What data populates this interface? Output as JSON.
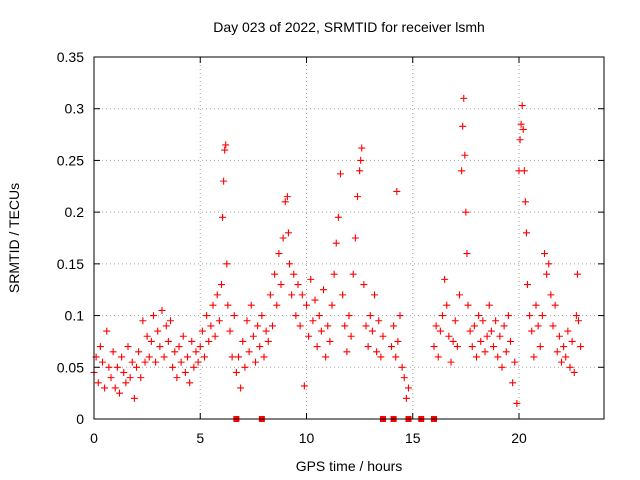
{
  "chart_data": {
    "type": "scatter",
    "title": "Day 023 of 2022, SRMTID for receiver lsmh",
    "xlabel": "GPS time / hours",
    "ylabel": "SRMTID / TECUs",
    "xlim": [
      0,
      24
    ],
    "ylim": [
      0,
      0.35
    ],
    "grid": true,
    "marker": "+",
    "color": "#ff0000",
    "x_ticks": [
      {
        "value": 0,
        "label": "0"
      },
      {
        "value": 5,
        "label": "5"
      },
      {
        "value": 10,
        "label": "10"
      },
      {
        "value": 15,
        "label": "15"
      },
      {
        "value": 20,
        "label": "20"
      }
    ],
    "y_ticks": [
      {
        "value": 0,
        "label": "0"
      },
      {
        "value": 0.05,
        "label": "0.05"
      },
      {
        "value": 0.1,
        "label": "0.1"
      },
      {
        "value": 0.15,
        "label": "0.15"
      },
      {
        "value": 0.2,
        "label": "0.2"
      },
      {
        "value": 0.25,
        "label": "0.25"
      },
      {
        "value": 0.3,
        "label": "0.3"
      },
      {
        "value": 0.35,
        "label": "0.35"
      }
    ],
    "series": [
      {
        "name": "SRMTID",
        "points": [
          [
            0.0,
            0.045
          ],
          [
            0.1,
            0.06
          ],
          [
            0.2,
            0.035
          ],
          [
            0.3,
            0.07
          ],
          [
            0.4,
            0.055
          ],
          [
            0.5,
            0.03
          ],
          [
            0.6,
            0.085
          ],
          [
            0.7,
            0.05
          ],
          [
            0.8,
            0.04
          ],
          [
            0.9,
            0.065
          ],
          [
            1.0,
            0.03
          ],
          [
            1.1,
            0.05
          ],
          [
            1.2,
            0.025
          ],
          [
            1.3,
            0.06
          ],
          [
            1.4,
            0.045
          ],
          [
            1.5,
            0.035
          ],
          [
            1.6,
            0.07
          ],
          [
            1.7,
            0.04
          ],
          [
            1.8,
            0.055
          ],
          [
            1.9,
            0.02
          ],
          [
            2.0,
            0.05
          ],
          [
            2.1,
            0.065
          ],
          [
            2.2,
            0.04
          ],
          [
            2.3,
            0.095
          ],
          [
            2.4,
            0.055
          ],
          [
            2.5,
            0.08
          ],
          [
            2.6,
            0.06
          ],
          [
            2.7,
            0.075
          ],
          [
            2.8,
            0.1
          ],
          [
            2.9,
            0.055
          ],
          [
            3.0,
            0.085
          ],
          [
            3.1,
            0.07
          ],
          [
            3.2,
            0.105
          ],
          [
            3.3,
            0.06
          ],
          [
            3.4,
            0.09
          ],
          [
            3.5,
            0.075
          ],
          [
            3.6,
            0.095
          ],
          [
            3.7,
            0.05
          ],
          [
            3.8,
            0.065
          ],
          [
            3.9,
            0.04
          ],
          [
            4.0,
            0.07
          ],
          [
            4.1,
            0.055
          ],
          [
            4.2,
            0.08
          ],
          [
            4.3,
            0.045
          ],
          [
            4.4,
            0.06
          ],
          [
            4.5,
            0.035
          ],
          [
            4.6,
            0.075
          ],
          [
            4.7,
            0.05
          ],
          [
            4.8,
            0.065
          ],
          [
            4.9,
            0.055
          ],
          [
            5.0,
            0.07
          ],
          [
            5.1,
            0.085
          ],
          [
            5.2,
            0.06
          ],
          [
            5.3,
            0.1
          ],
          [
            5.4,
            0.075
          ],
          [
            5.5,
            0.09
          ],
          [
            5.6,
            0.11
          ],
          [
            5.7,
            0.08
          ],
          [
            5.8,
            0.12
          ],
          [
            5.9,
            0.095
          ],
          [
            6.0,
            0.13
          ],
          [
            6.05,
            0.195
          ],
          [
            6.1,
            0.23
          ],
          [
            6.15,
            0.26
          ],
          [
            6.2,
            0.265
          ],
          [
            6.25,
            0.15
          ],
          [
            6.3,
            0.11
          ],
          [
            6.4,
            0.085
          ],
          [
            6.5,
            0.06
          ],
          [
            6.6,
            0.1
          ],
          [
            6.7,
            0.045
          ],
          [
            6.8,
            0.06
          ],
          [
            6.9,
            0.03
          ],
          [
            7.0,
            0.075
          ],
          [
            7.1,
            0.05
          ],
          [
            7.2,
            0.095
          ],
          [
            7.3,
            0.065
          ],
          [
            7.4,
            0.11
          ],
          [
            7.5,
            0.08
          ],
          [
            7.6,
            0.055
          ],
          [
            7.7,
            0.09
          ],
          [
            7.8,
            0.07
          ],
          [
            7.9,
            0.1
          ],
          [
            8.0,
            0.06
          ],
          [
            8.1,
            0.085
          ],
          [
            8.2,
            0.075
          ],
          [
            8.3,
            0.12
          ],
          [
            8.4,
            0.09
          ],
          [
            8.5,
            0.14
          ],
          [
            8.6,
            0.11
          ],
          [
            8.7,
            0.16
          ],
          [
            8.8,
            0.13
          ],
          [
            8.9,
            0.175
          ],
          [
            9.0,
            0.21
          ],
          [
            9.1,
            0.215
          ],
          [
            9.15,
            0.18
          ],
          [
            9.2,
            0.15
          ],
          [
            9.3,
            0.12
          ],
          [
            9.4,
            0.14
          ],
          [
            9.5,
            0.1
          ],
          [
            9.6,
            0.13
          ],
          [
            9.7,
            0.09
          ],
          [
            9.8,
            0.12
          ],
          [
            9.9,
            0.032
          ],
          [
            10.0,
            0.11
          ],
          [
            10.1,
            0.08
          ],
          [
            10.2,
            0.135
          ],
          [
            10.3,
            0.095
          ],
          [
            10.4,
            0.115
          ],
          [
            10.5,
            0.07
          ],
          [
            10.6,
            0.1
          ],
          [
            10.7,
            0.085
          ],
          [
            10.8,
            0.125
          ],
          [
            10.9,
            0.06
          ],
          [
            11.0,
            0.09
          ],
          [
            11.1,
            0.075
          ],
          [
            11.2,
            0.11
          ],
          [
            11.3,
            0.14
          ],
          [
            11.4,
            0.17
          ],
          [
            11.5,
            0.195
          ],
          [
            11.6,
            0.237
          ],
          [
            11.7,
            0.12
          ],
          [
            11.8,
            0.09
          ],
          [
            11.9,
            0.065
          ],
          [
            12.0,
            0.1
          ],
          [
            12.1,
            0.08
          ],
          [
            12.2,
            0.14
          ],
          [
            12.3,
            0.175
          ],
          [
            12.4,
            0.215
          ],
          [
            12.5,
            0.24
          ],
          [
            12.55,
            0.25
          ],
          [
            12.6,
            0.262
          ],
          [
            12.7,
            0.13
          ],
          [
            12.8,
            0.09
          ],
          [
            12.9,
            0.07
          ],
          [
            13.0,
            0.1
          ],
          [
            13.1,
            0.085
          ],
          [
            13.2,
            0.12
          ],
          [
            13.3,
            0.065
          ],
          [
            13.4,
            0.095
          ],
          [
            13.5,
            0.06
          ],
          [
            13.6,
            0.08
          ],
          [
            14.0,
            0.07
          ],
          [
            14.1,
            0.09
          ],
          [
            14.2,
            0.06
          ],
          [
            14.25,
            0.22
          ],
          [
            14.3,
            0.075
          ],
          [
            14.4,
            0.1
          ],
          [
            14.5,
            0.05
          ],
          [
            14.6,
            0.04
          ],
          [
            14.7,
            0.02
          ],
          [
            14.8,
            0.03
          ],
          [
            16.0,
            0.07
          ],
          [
            16.1,
            0.09
          ],
          [
            16.2,
            0.06
          ],
          [
            16.3,
            0.085
          ],
          [
            16.4,
            0.1
          ],
          [
            16.5,
            0.135
          ],
          [
            16.6,
            0.11
          ],
          [
            16.7,
            0.08
          ],
          [
            16.8,
            0.055
          ],
          [
            16.9,
            0.075
          ],
          [
            17.0,
            0.095
          ],
          [
            17.1,
            0.07
          ],
          [
            17.2,
            0.12
          ],
          [
            17.3,
            0.24
          ],
          [
            17.35,
            0.283
          ],
          [
            17.4,
            0.31
          ],
          [
            17.45,
            0.255
          ],
          [
            17.5,
            0.2
          ],
          [
            17.55,
            0.16
          ],
          [
            17.6,
            0.11
          ],
          [
            17.7,
            0.085
          ],
          [
            17.8,
            0.07
          ],
          [
            17.9,
            0.09
          ],
          [
            18.0,
            0.06
          ],
          [
            18.1,
            0.1
          ],
          [
            18.2,
            0.075
          ],
          [
            18.3,
            0.095
          ],
          [
            18.4,
            0.065
          ],
          [
            18.5,
            0.08
          ],
          [
            18.6,
            0.11
          ],
          [
            18.7,
            0.085
          ],
          [
            18.8,
            0.07
          ],
          [
            18.9,
            0.095
          ],
          [
            19.0,
            0.06
          ],
          [
            19.1,
            0.08
          ],
          [
            19.2,
            0.05
          ],
          [
            19.3,
            0.09
          ],
          [
            19.4,
            0.065
          ],
          [
            19.5,
            0.1
          ],
          [
            19.6,
            0.075
          ],
          [
            19.7,
            0.035
          ],
          [
            19.8,
            0.055
          ],
          [
            19.9,
            0.015
          ],
          [
            20.0,
            0.24
          ],
          [
            20.05,
            0.27
          ],
          [
            20.1,
            0.285
          ],
          [
            20.15,
            0.303
          ],
          [
            20.2,
            0.28
          ],
          [
            20.25,
            0.24
          ],
          [
            20.3,
            0.21
          ],
          [
            20.35,
            0.18
          ],
          [
            20.4,
            0.13
          ],
          [
            20.5,
            0.1
          ],
          [
            20.6,
            0.085
          ],
          [
            20.7,
            0.06
          ],
          [
            20.8,
            0.11
          ],
          [
            20.9,
            0.09
          ],
          [
            21.0,
            0.07
          ],
          [
            21.1,
            0.1
          ],
          [
            21.2,
            0.16
          ],
          [
            21.3,
            0.14
          ],
          [
            21.4,
            0.15
          ],
          [
            21.5,
            0.12
          ],
          [
            21.6,
            0.09
          ],
          [
            21.7,
            0.11
          ],
          [
            21.8,
            0.065
          ],
          [
            21.9,
            0.08
          ],
          [
            22.0,
            0.055
          ],
          [
            22.1,
            0.07
          ],
          [
            22.2,
            0.06
          ],
          [
            22.3,
            0.085
          ],
          [
            22.4,
            0.05
          ],
          [
            22.5,
            0.075
          ],
          [
            22.6,
            0.045
          ],
          [
            22.7,
            0.1
          ],
          [
            22.75,
            0.14
          ],
          [
            22.8,
            0.095
          ],
          [
            22.9,
            0.07
          ]
        ],
        "zero_points": [
          6.7,
          7.9,
          13.6,
          14.1,
          14.8,
          15.4,
          16.0
        ]
      }
    ]
  }
}
